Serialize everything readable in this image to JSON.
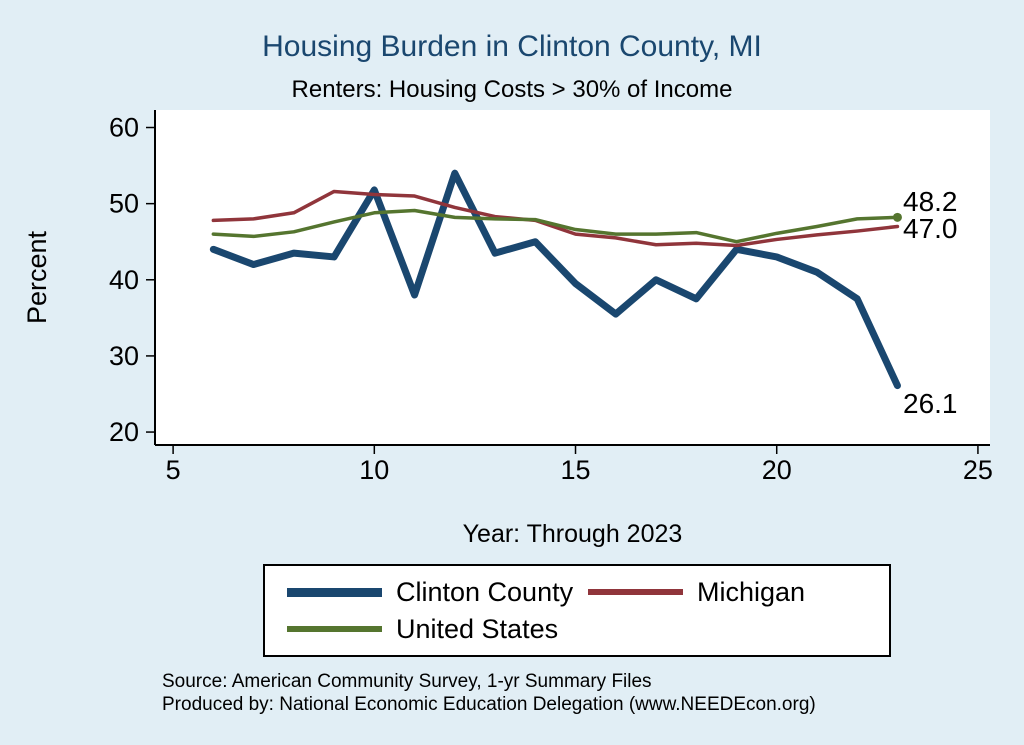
{
  "header": {
    "title": "Housing Burden in Clinton County, MI",
    "subtitle": "Renters: Housing Costs > 30% of Income"
  },
  "chart_data": {
    "type": "line",
    "x": [
      6,
      7,
      8,
      9,
      10,
      11,
      12,
      13,
      14,
      15,
      16,
      17,
      18,
      19,
      20,
      21,
      22,
      23
    ],
    "series": [
      {
        "name": "Clinton County",
        "color": "#1a476f",
        "width": 7,
        "values": [
          44.0,
          42.0,
          43.5,
          43.0,
          51.8,
          38.0,
          54.0,
          43.5,
          45.0,
          39.5,
          35.5,
          40.0,
          37.5,
          44.0,
          43.0,
          41.0,
          37.5,
          26.1
        ]
      },
      {
        "name": "Michigan",
        "color": "#90353b",
        "width": 3.5,
        "values": [
          47.8,
          48.0,
          48.8,
          51.6,
          51.2,
          51.0,
          49.5,
          48.3,
          47.8,
          46.0,
          45.5,
          44.6,
          44.8,
          44.5,
          45.3,
          45.9,
          46.4,
          47.0
        ]
      },
      {
        "name": "United States",
        "color": "#55752f",
        "width": 3.5,
        "end_marker": true,
        "values": [
          46.0,
          45.7,
          46.3,
          47.6,
          48.8,
          49.1,
          48.2,
          48.0,
          47.9,
          46.6,
          46.0,
          46.0,
          46.2,
          45.0,
          46.1,
          47.0,
          48.0,
          48.2
        ]
      }
    ],
    "title": "Housing Burden in Clinton County, MI",
    "subtitle": "Renters: Housing Costs > 30% of Income",
    "xlabel": "Year: Through 2023",
    "ylabel": "Percent",
    "xticks": [
      5,
      10,
      15,
      20,
      25
    ],
    "yticks": [
      20,
      30,
      40,
      50,
      60
    ],
    "xlim": [
      4.55,
      25.3
    ],
    "ylim": [
      18.3,
      62.3
    ],
    "grid": false,
    "legend_position": "bottom",
    "end_labels": [
      {
        "text": "48.2",
        "value": 48.2,
        "dy": -16
      },
      {
        "text": "47.0",
        "value": 47.0,
        "dy": 2
      },
      {
        "text": "26.1",
        "value": 26.1,
        "dy": 18
      }
    ]
  },
  "legend": {
    "items": [
      {
        "label": "Clinton County",
        "color": "#1a476f"
      },
      {
        "label": "Michigan",
        "color": "#90353b"
      },
      {
        "label": "United States",
        "color": "#55752f"
      }
    ]
  },
  "footer": {
    "source": "Source: American Community Survey, 1-yr Summary Files",
    "produced_by": "Produced by: National Economic Education Delegation (www.NEEDEcon.org)"
  },
  "colors": {
    "page_background": "#e1eef5",
    "plot_background": "#ffffff",
    "title": "#1a476f",
    "axis": "#000000"
  }
}
